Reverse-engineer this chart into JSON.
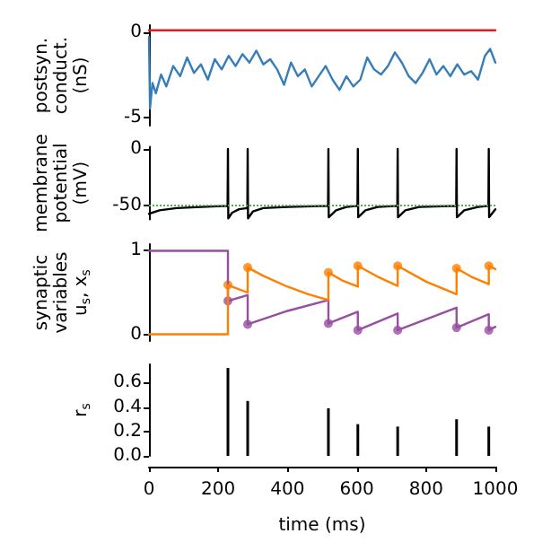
{
  "chart_data": [
    {
      "type": "line",
      "ylabel": "postsyn.\nconduct.\n(nS)",
      "xlim": [
        0,
        1000
      ],
      "ylim": [
        -5.5,
        0.4
      ],
      "yticks": [
        -5,
        0
      ],
      "tick_labels": "y",
      "grid": false,
      "series": [
        {
          "color": "#377eb8",
          "x": [
            0,
            3,
            10,
            20,
            35,
            50,
            70,
            90,
            110,
            130,
            150,
            170,
            190,
            210,
            230,
            250,
            270,
            290,
            310,
            330,
            350,
            370,
            390,
            410,
            430,
            450,
            470,
            490,
            510,
            530,
            550,
            570,
            590,
            610,
            630,
            650,
            670,
            690,
            710,
            730,
            750,
            770,
            790,
            810,
            830,
            850,
            870,
            890,
            910,
            930,
            950,
            970,
            985,
            1000
          ],
          "values": [
            -0.3,
            -4.5,
            -3.0,
            -3.6,
            -2.5,
            -3.2,
            -2.0,
            -2.6,
            -1.5,
            -2.4,
            -1.9,
            -2.8,
            -1.6,
            -2.2,
            -1.4,
            -2.0,
            -1.3,
            -1.8,
            -1.1,
            -1.9,
            -1.6,
            -2.2,
            -3.1,
            -1.8,
            -2.6,
            -2.2,
            -3.2,
            -2.6,
            -2.0,
            -2.8,
            -3.4,
            -2.6,
            -3.2,
            -2.8,
            -1.5,
            -2.2,
            -2.5,
            -2.0,
            -1.2,
            -1.8,
            -2.6,
            -3.0,
            -2.4,
            -1.6,
            -2.5,
            -2.0,
            -2.6,
            -1.9,
            -2.5,
            -2.3,
            -2.8,
            -1.4,
            -1.0,
            -1.8
          ]
        },
        {
          "color": "#e41a1c",
          "x": [
            0,
            50,
            100,
            150,
            200,
            250,
            300,
            350,
            400,
            450,
            500,
            550,
            600,
            650,
            700,
            750,
            800,
            850,
            900,
            950,
            1000
          ],
          "values": [
            0.1,
            0.1,
            0.1,
            0.1,
            0.1,
            0.1,
            0.1,
            0.1,
            0.1,
            0.1,
            0.1,
            0.1,
            0.1,
            0.1,
            0.1,
            0.1,
            0.1,
            0.1,
            0.1,
            0.1,
            0.1
          ]
        }
      ]
    },
    {
      "type": "line",
      "ylabel": "membrane\npotential\n(mV)",
      "xlim": [
        0,
        1000
      ],
      "ylim": [
        -62,
        2
      ],
      "yticks": [
        -50,
        0
      ],
      "tick_labels": "y",
      "grid": false,
      "ref_lines": [
        {
          "axis": "y",
          "value": -50,
          "color": "#4daf4a",
          "line_style": "dotted"
        }
      ],
      "series": [
        {
          "color": "#000000",
          "x": [
            0,
            30,
            80,
            150,
            227,
            228,
            229,
            240,
            260,
            284,
            285,
            286,
            300,
            330,
            400,
            517,
            518,
            519,
            540,
            570,
            602,
            603,
            604,
            625,
            660,
            717,
            718,
            719,
            740,
            780,
            887,
            888,
            889,
            910,
            950,
            980,
            981,
            982,
            1000
          ],
          "values": [
            -57,
            -54,
            -52,
            -51,
            -50,
            0,
            -61,
            -56,
            -53,
            -52,
            0,
            -61,
            -55,
            -52,
            -51,
            -50,
            0,
            -60,
            -54,
            -51,
            -50,
            0,
            -60,
            -54,
            -51,
            -50,
            0,
            -60,
            -54,
            -51,
            -50,
            0,
            -60,
            -54,
            -51,
            -50,
            0,
            -60,
            -53
          ]
        }
      ]
    },
    {
      "type": "line",
      "ylabel": "synaptic\nvariables\nu$_{s}$, x$_{s}$",
      "xlim": [
        0,
        1000
      ],
      "ylim": [
        -0.08,
        1.08
      ],
      "yticks": [
        0,
        1
      ],
      "tick_labels": "y",
      "grid": false,
      "series": [
        {
          "color": "#984ea3",
          "x": [
            0,
            228,
            228,
            285,
            285,
            400,
            518,
            518,
            603,
            603,
            718,
            718,
            888,
            888,
            981,
            981,
            1000
          ],
          "values": [
            1,
            1,
            0.4,
            0.47,
            0.12,
            0.28,
            0.41,
            0.13,
            0.27,
            0.05,
            0.25,
            0.05,
            0.32,
            0.08,
            0.24,
            0.05,
            0.09
          ]
        },
        {
          "type": "scatter",
          "marker": "circle",
          "color": "#984ea3",
          "x": [
            228,
            285,
            518,
            603,
            718,
            888,
            981
          ],
          "values": [
            0.4,
            0.12,
            0.13,
            0.05,
            0.05,
            0.08,
            0.05
          ]
        },
        {
          "color": "#ff7f00",
          "x": [
            0,
            228,
            228,
            285,
            285,
            330,
            400,
            460,
            518,
            518,
            560,
            603,
            603,
            660,
            718,
            718,
            800,
            888,
            888,
            930,
            981,
            981,
            1000
          ],
          "values": [
            0,
            0,
            0.59,
            0.5,
            0.8,
            0.7,
            0.57,
            0.48,
            0.41,
            0.74,
            0.64,
            0.57,
            0.82,
            0.69,
            0.58,
            0.82,
            0.63,
            0.48,
            0.79,
            0.69,
            0.6,
            0.82,
            0.78
          ]
        },
        {
          "type": "scatter",
          "marker": "circle",
          "color": "#ff7f00",
          "x": [
            228,
            285,
            518,
            603,
            718,
            888,
            981
          ],
          "values": [
            0.59,
            0.8,
            0.74,
            0.82,
            0.82,
            0.79,
            0.82
          ]
        }
      ]
    },
    {
      "type": "bar",
      "ylabel": "r$_{s}$",
      "xlabel": "time (ms)",
      "xlim": [
        0,
        1000
      ],
      "xticks": [
        0,
        200,
        400,
        600,
        800,
        1000
      ],
      "ylim": [
        0,
        0.75
      ],
      "yticks": [
        {
          "value": 0,
          "label": "0.0"
        },
        {
          "value": 0.2,
          "label": "0.2"
        },
        {
          "value": 0.4,
          "label": "0.4"
        },
        {
          "value": 0.6,
          "label": "0.6"
        }
      ],
      "grid": false,
      "x": [
        228,
        285,
        518,
        603,
        718,
        888,
        981
      ],
      "values": [
        0.72,
        0.45,
        0.39,
        0.26,
        0.24,
        0.3,
        0.24
      ],
      "color": "#000000"
    }
  ]
}
